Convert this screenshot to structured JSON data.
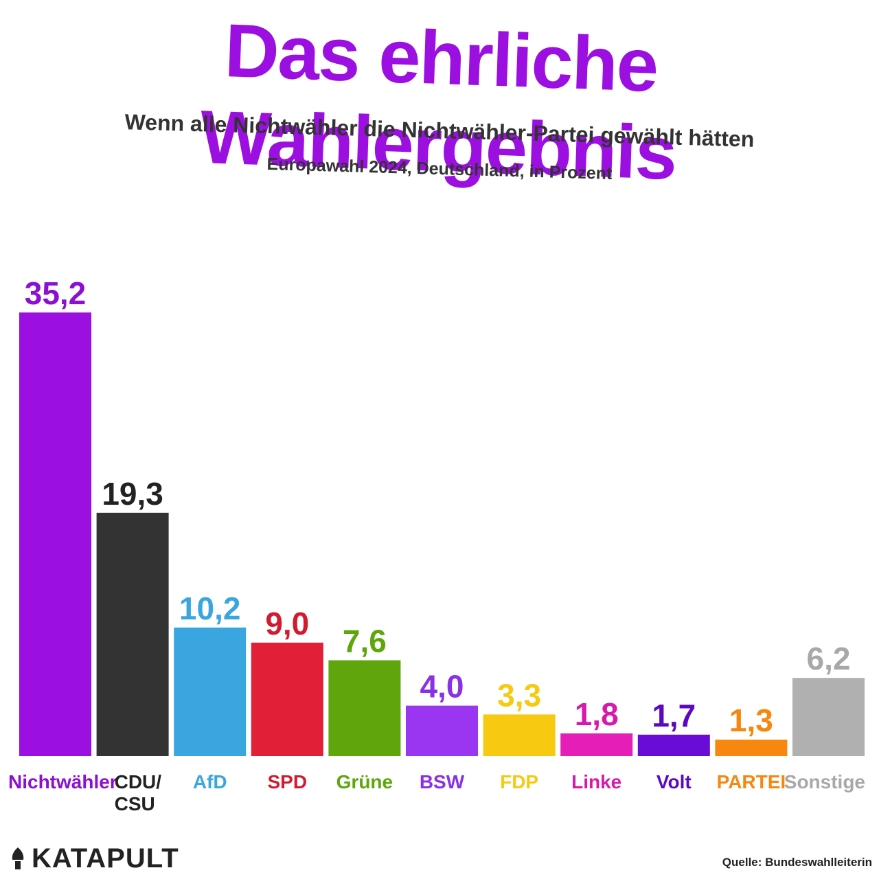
{
  "chart_data": {
    "type": "bar",
    "title": "Das ehrliche Wahlergebnis",
    "subtitle": "Wenn alle Nichtwähler die Nichtwähler-Partei gewählt hätten",
    "note": "Europawahl 2024, Deutschland, in Prozent",
    "ylim": [
      0,
      35.2
    ],
    "categories": [
      "Nichtwähler",
      "CDU/CSU",
      "AfD",
      "SPD",
      "Grüne",
      "BSW",
      "FDP",
      "Linke",
      "Volt",
      "PARTEI",
      "Sonstige"
    ],
    "category_lines": [
      [
        "Nichtwähler"
      ],
      [
        "CDU/",
        "CSU"
      ],
      [
        "AfD"
      ],
      [
        "SPD"
      ],
      [
        "Grüne"
      ],
      [
        "BSW"
      ],
      [
        "FDP"
      ],
      [
        "Linke"
      ],
      [
        "Volt"
      ],
      [
        "PARTEI"
      ],
      [
        "Sonstige"
      ]
    ],
    "values": [
      35.2,
      19.3,
      10.2,
      9.0,
      7.6,
      4.0,
      3.3,
      1.8,
      1.7,
      1.3,
      6.2
    ],
    "value_labels": [
      "35,2",
      "19,3",
      "10,2",
      "9,0",
      "7,6",
      "4,0",
      "3,3",
      "1,8",
      "1,7",
      "1,3",
      "6,2"
    ],
    "colors": [
      "#9b10e0",
      "#333333",
      "#3aa6e0",
      "#e11f36",
      "#5ea60c",
      "#9a35f2",
      "#f7c911",
      "#e51eb8",
      "#6a0bd6",
      "#f7870f",
      "#b0b0b0"
    ],
    "label_colors": [
      "#8b10d0",
      "#222222",
      "#3aa6e0",
      "#d31b30",
      "#5ea60c",
      "#8a30e6",
      "#f7c911",
      "#d61aab",
      "#5a09c0",
      "#f7870f",
      "#a8a8a8"
    ]
  },
  "branding": {
    "logo_icon": "katapult-logo-icon",
    "name": "KATAPULT"
  },
  "source": "Quelle: Bundeswahlleiterin"
}
